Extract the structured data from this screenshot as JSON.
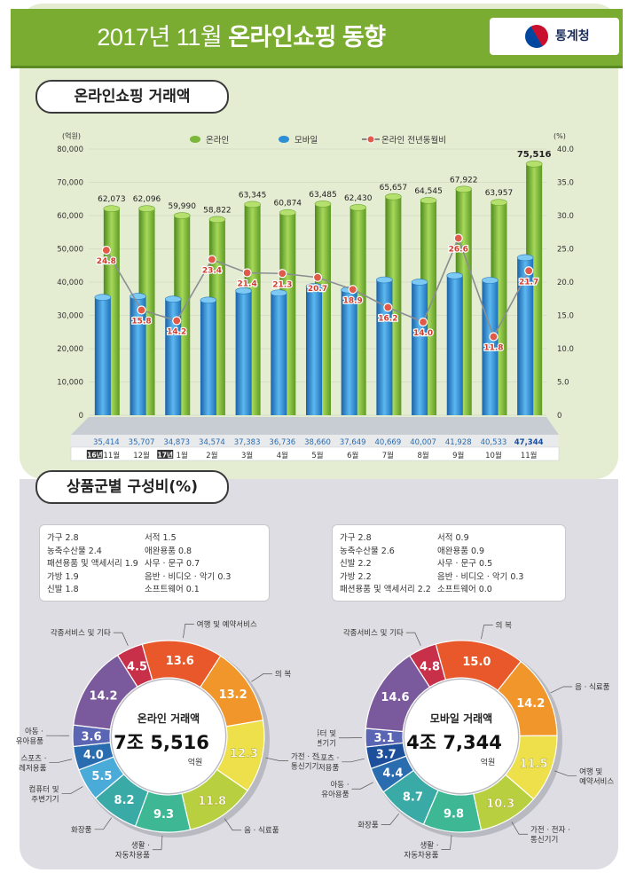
{
  "header": {
    "title_year": "2017년 11월",
    "title_main": "온라인쇼핑 동향",
    "logo_text": "통계청"
  },
  "sections": {
    "trend_title": "온라인쇼핑 거래액",
    "share_title": "상품군별 구성비(%)"
  },
  "chart_data": [
    {
      "type": "bar",
      "ylabel_left_unit": "(억원)",
      "ylabel_right_unit": "(%)",
      "legend": [
        "온라인",
        "모바일",
        "온라인 전년동월비"
      ],
      "categories": [
        "11월",
        "12월",
        "1월",
        "2월",
        "3월",
        "4월",
        "5월",
        "6월",
        "7월",
        "8월",
        "9월",
        "10월",
        "11월"
      ],
      "year_tags": {
        "0": "16년",
        "2": "17년"
      },
      "ylim_left": [
        0,
        80000
      ],
      "left_ticks": [
        "80,000",
        "70,000",
        "60,000",
        "50,000",
        "40,000",
        "30,000",
        "20,000",
        "10,000",
        "0"
      ],
      "ylim_right": [
        0,
        40
      ],
      "right_ticks": [
        "40.0",
        "35.0",
        "30.0",
        "25.0",
        "20.0",
        "15.0",
        "10.0",
        "5.0",
        "0"
      ],
      "series": [
        {
          "name": "온라인",
          "color": "#7ab83a",
          "values": [
            62073,
            62096,
            59990,
            58822,
            63345,
            60874,
            63485,
            62430,
            65657,
            64545,
            67922,
            63957,
            75516
          ],
          "labels": [
            "62,073",
            "62,096",
            "59,990",
            "58,822",
            "63,345",
            "60,874",
            "63,485",
            "62,430",
            "65,657",
            "64,545",
            "67,922",
            "63,957",
            "75,516"
          ]
        },
        {
          "name": "모바일",
          "color": "#2f8fd6",
          "values": [
            35414,
            35707,
            34873,
            34574,
            37383,
            36736,
            38660,
            37649,
            40669,
            40007,
            41928,
            40533,
            47344
          ],
          "labels": [
            "35,414",
            "35,707",
            "34,873",
            "34,574",
            "37,383",
            "36,736",
            "38,660",
            "37,649",
            "40,669",
            "40,007",
            "41,928",
            "40,533",
            "47,344"
          ]
        },
        {
          "name": "온라인 전년동월비",
          "color": "#e05a4a",
          "axis": "right",
          "values": [
            24.8,
            15.8,
            14.2,
            23.4,
            21.4,
            21.3,
            20.7,
            18.9,
            16.2,
            14.0,
            26.6,
            11.8,
            21.7
          ],
          "labels": [
            "24.8",
            "15.8",
            "14.2",
            "23.4",
            "21.4",
            "21.3",
            "20.7",
            "18.9",
            "16.2",
            "14.0",
            "26.6",
            "11.8",
            "21.7"
          ]
        }
      ]
    },
    {
      "type": "pie",
      "center_title": "온라인 거래액",
      "center_value_a": "7조",
      "center_value_b": "5,516",
      "center_unit": "억원",
      "slices": [
        {
          "label": "각종서비스 및 기타",
          "value": 4.5,
          "color": "#c8304a"
        },
        {
          "label": "여행 및 예약서비스",
          "value": 13.6,
          "color": "#e8582a"
        },
        {
          "label": "의 복",
          "value": 13.2,
          "color": "#f0962a"
        },
        {
          "label": "가전·전자·통신기기",
          "value": 12.3,
          "color": "#eee04a"
        },
        {
          "label": "음·식료품",
          "value": 11.8,
          "color": "#b8d040"
        },
        {
          "label": "생활·자동차용품",
          "value": 9.3,
          "color": "#3eb894"
        },
        {
          "label": "화장품",
          "value": 8.2,
          "color": "#3aaaa6"
        },
        {
          "label": "컴퓨터 및 주변기기",
          "value": 5.5,
          "color": "#4aaad8"
        },
        {
          "label": "스포츠·레저용품",
          "value": 4.0,
          "color": "#2a6cb0"
        },
        {
          "label": "아동·유아용품",
          "value": 3.6,
          "color": "#5a66b4"
        },
        {
          "label": "기타합계",
          "value": 14.2,
          "color": "#7a5a9c"
        }
      ],
      "extra_left": [
        "가구 2.8",
        "농축수산물 2.4",
        "패션용품 및 액세서리 1.9",
        "가방 1.9",
        "신발 1.8"
      ],
      "extra_right": [
        "서적 1.5",
        "애완용품 0.8",
        "사무 · 문구 0.7",
        "음반 · 비디오 · 악기 0.3",
        "소프트웨어 0.1"
      ]
    },
    {
      "type": "pie",
      "center_title": "모바일 거래액",
      "center_value_a": "4조",
      "center_value_b": "7,344",
      "center_unit": "억원",
      "slices": [
        {
          "label": "각종서비스 및 기타",
          "value": 4.8,
          "color": "#c8304a"
        },
        {
          "label": "의 복",
          "value": 15.0,
          "color": "#e8582a"
        },
        {
          "label": "음 · 식료품",
          "value": 14.2,
          "color": "#f0962a"
        },
        {
          "label": "여행 및 예약서비스",
          "value": 11.5,
          "color": "#eee04a"
        },
        {
          "label": "가전·전자·통신기기",
          "value": 10.3,
          "color": "#b8d040"
        },
        {
          "label": "생활·자동차용품",
          "value": 9.8,
          "color": "#3eb894"
        },
        {
          "label": "화장품",
          "value": 8.7,
          "color": "#3aaaa6"
        },
        {
          "label": "아동·유아용품",
          "value": 4.4,
          "color": "#2a6cb0"
        },
        {
          "label": "스포츠·레저용품",
          "value": 3.7,
          "color": "#1e4f9a"
        },
        {
          "label": "컴퓨터 및 주변기기",
          "value": 3.1,
          "color": "#5a66b4"
        },
        {
          "label": "기타합계",
          "value": 14.6,
          "color": "#7a5a9c"
        }
      ],
      "extra_left": [
        "가구 2.8",
        "농축수산물 2.6",
        "신발 2.2",
        "가방 2.2",
        "패션용품 및 액세서리 2.2"
      ],
      "extra_right": [
        "서적 0.9",
        "애완용품 0.9",
        "사무 · 문구 0.5",
        "음반 · 비디오 · 악기 0.3",
        "소프트웨어 0.0"
      ]
    }
  ],
  "donut_outer_labels": {
    "left": [
      {
        "text1": "각종서비스 및 기타",
        "text2": ""
      },
      {
        "text1": "여행 및 예약서비스",
        "text2": ""
      },
      {
        "text1": "의 복",
        "text2": ""
      },
      {
        "text1": "가전 · 전자 ·",
        "text2": "통신기기"
      },
      {
        "text1": "음 · 식료품",
        "text2": ""
      },
      {
        "text1": "생활 ·",
        "text2": "자동차용품"
      },
      {
        "text1": "화장품",
        "text2": ""
      },
      {
        "text1": "컴퓨터 및",
        "text2": "주변기기"
      },
      {
        "text1": "스포츠 ·",
        "text2": "레저용품"
      },
      {
        "text1": "아동 ·",
        "text2": "유아용품"
      }
    ],
    "right": [
      {
        "text1": "각종서비스 및 기타",
        "text2": ""
      },
      {
        "text1": "의 복",
        "text2": ""
      },
      {
        "text1": "음 · 식료품",
        "text2": ""
      },
      {
        "text1": "여행 및",
        "text2": "예약서비스"
      },
      {
        "text1": "가전 · 전자 ·",
        "text2": "통신기기"
      },
      {
        "text1": "생활 ·",
        "text2": "자동차용품"
      },
      {
        "text1": "화장품",
        "text2": ""
      },
      {
        "text1": "아동 ·",
        "text2": "유아용품"
      },
      {
        "text1": "스포츠 ·",
        "text2": "레저용품"
      },
      {
        "text1": "컴퓨터 및",
        "text2": "주변기기"
      }
    ]
  }
}
